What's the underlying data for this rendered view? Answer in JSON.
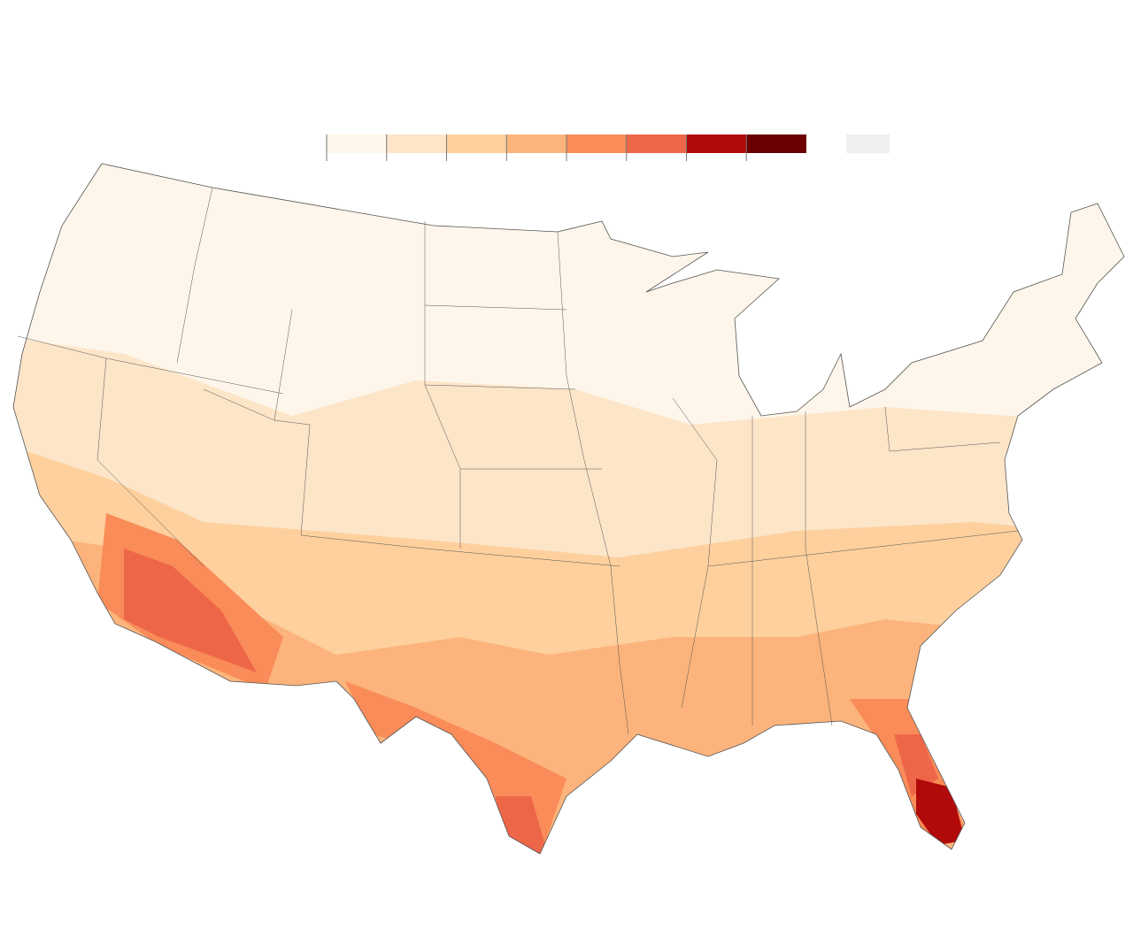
{
  "legend": {
    "colors": [
      "#fef6ea",
      "#fde5c8",
      "#fdd09e",
      "#fcb47c",
      "#f98c58",
      "#ee6648",
      "#b10a0a",
      "#6b0000"
    ],
    "no_data_color": "#efefef"
  }
}
